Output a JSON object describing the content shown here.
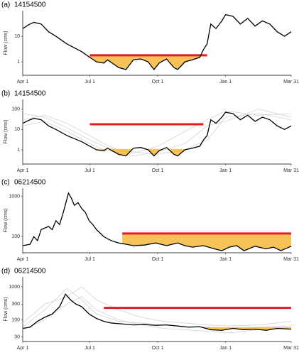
{
  "chart_data": [
    {
      "type": "line",
      "panel_label": "(a)",
      "title": "14154500",
      "y_label": "Flow (cms)",
      "log_y": true,
      "xlim": [
        0,
        364
      ],
      "xticks": [
        {
          "value": 0,
          "label": "Apr 1"
        },
        {
          "value": 91,
          "label": "Jul 1"
        },
        {
          "value": 183,
          "label": "Oct 1"
        },
        {
          "value": 275,
          "label": "Jan 1"
        },
        {
          "value": 364,
          "label": "Mar 31"
        }
      ],
      "ylim": [
        0.3,
        100
      ],
      "yticks": [
        1,
        10
      ],
      "threshold": {
        "value": 1.8,
        "start": 91,
        "end": 250,
        "color": "#e41a1c"
      },
      "shading": {
        "level": 1.8,
        "color": "#f6b83c"
      },
      "series": [
        {
          "color": "#000000",
          "x": [
            0,
            8,
            15,
            25,
            35,
            45,
            60,
            80,
            91,
            100,
            110,
            115,
            130,
            140,
            150,
            160,
            170,
            178,
            185,
            195,
            205,
            210,
            220,
            230,
            240,
            245,
            250,
            255,
            262,
            270,
            275,
            285,
            295,
            305,
            315,
            325,
            335,
            345,
            355,
            364
          ],
          "values": [
            20,
            28,
            35,
            30,
            15,
            10,
            5,
            2.5,
            1.5,
            1,
            0.9,
            1.2,
            0.6,
            0.5,
            1.2,
            1.3,
            1,
            0.5,
            0.9,
            1.3,
            0.6,
            0.5,
            1,
            1.2,
            1.5,
            3,
            5,
            30,
            20,
            40,
            70,
            60,
            30,
            50,
            25,
            40,
            30,
            15,
            10,
            15
          ]
        }
      ]
    },
    {
      "type": "line",
      "panel_label": "(b)",
      "title": "14154500",
      "y_label": "Flow (cms)",
      "log_y": true,
      "xlim": [
        0,
        364
      ],
      "xticks": [
        {
          "value": 0,
          "label": "Apr 1"
        },
        {
          "value": 91,
          "label": "Jul 1"
        },
        {
          "value": 183,
          "label": "Oct 1"
        },
        {
          "value": 275,
          "label": "Jan 1"
        },
        {
          "value": 364,
          "label": "Mar 31"
        }
      ],
      "ylim": [
        0.2,
        300
      ],
      "yticks": [
        1,
        10,
        100
      ],
      "threshold": {
        "value": 18,
        "start": 91,
        "end": 245,
        "color": "#e41a1c"
      },
      "shading": {
        "level": 1.1,
        "color": "#f6b83c"
      },
      "series": [
        {
          "color": "#c8c8c8",
          "x": [
            0,
            30,
            60,
            91,
            110,
            130,
            150,
            183,
            220,
            250,
            275,
            320,
            364
          ],
          "values": [
            30,
            50,
            20,
            5,
            2,
            1,
            0.8,
            0.6,
            1,
            3,
            40,
            60,
            30
          ]
        },
        {
          "color": "#c8c8c8",
          "x": [
            0,
            30,
            60,
            91,
            110,
            130,
            150,
            183,
            220,
            250,
            275,
            320,
            364
          ],
          "values": [
            60,
            40,
            12,
            3,
            1.5,
            0.9,
            0.7,
            1.5,
            8,
            30,
            80,
            50,
            60
          ]
        },
        {
          "color": "#c8c8c8",
          "x": [
            0,
            30,
            60,
            91,
            110,
            130,
            150,
            183,
            220,
            250,
            275,
            320,
            364
          ],
          "values": [
            15,
            25,
            8,
            2,
            1,
            0.7,
            0.5,
            0.8,
            2,
            15,
            25,
            100,
            40
          ]
        },
        {
          "color": "#000000",
          "x": [
            0,
            8,
            15,
            25,
            35,
            45,
            60,
            80,
            91,
            100,
            110,
            115,
            130,
            140,
            150,
            160,
            170,
            178,
            185,
            195,
            205,
            210,
            220,
            230,
            240,
            245,
            250,
            255,
            262,
            270,
            275,
            285,
            295,
            305,
            315,
            325,
            335,
            345,
            355,
            364
          ],
          "values": [
            20,
            28,
            35,
            30,
            15,
            10,
            5,
            2.5,
            1.5,
            1,
            0.9,
            1.2,
            0.6,
            0.5,
            1.2,
            1.3,
            1,
            0.5,
            0.9,
            1.3,
            0.6,
            0.5,
            1,
            1.2,
            1.5,
            3,
            5,
            30,
            20,
            40,
            70,
            60,
            30,
            50,
            25,
            40,
            30,
            15,
            10,
            15
          ]
        }
      ]
    },
    {
      "type": "line",
      "panel_label": "(c)",
      "title": "06214500",
      "y_label": "Flow (cms)",
      "log_y": true,
      "xlim": [
        0,
        364
      ],
      "xticks": [
        {
          "value": 0,
          "label": "Apr 1"
        },
        {
          "value": 91,
          "label": "Jul 1"
        },
        {
          "value": 183,
          "label": "Oct 1"
        },
        {
          "value": 275,
          "label": "Jan 1"
        },
        {
          "value": 364,
          "label": "Mar 31"
        }
      ],
      "ylim": [
        40,
        1600
      ],
      "yticks": [
        100,
        1000
      ],
      "threshold": {
        "value": 120,
        "start": 135,
        "end": 364,
        "color": "#e41a1c"
      },
      "shading": {
        "level": 120,
        "color": "#f6b83c"
      },
      "series": [
        {
          "color": "#000000",
          "x": [
            0,
            10,
            15,
            20,
            25,
            35,
            40,
            45,
            50,
            55,
            62,
            66,
            70,
            75,
            80,
            85,
            90,
            95,
            100,
            110,
            120,
            130,
            140,
            150,
            165,
            180,
            195,
            210,
            220,
            230,
            245,
            260,
            270,
            280,
            290,
            300,
            315,
            330,
            340,
            350,
            364
          ],
          "values": [
            60,
            65,
            100,
            80,
            150,
            180,
            150,
            250,
            200,
            400,
            1200,
            900,
            600,
            700,
            500,
            400,
            250,
            200,
            150,
            100,
            80,
            70,
            65,
            60,
            62,
            70,
            60,
            70,
            60,
            55,
            60,
            50,
            45,
            55,
            60,
            45,
            58,
            50,
            55,
            45,
            58
          ]
        }
      ]
    },
    {
      "type": "line",
      "panel_label": "(d)",
      "title": "06214500",
      "y_label": "Flow (cms)",
      "log_y": true,
      "xlim": [
        0,
        364
      ],
      "xticks": [
        {
          "value": 0,
          "label": "Apr 1"
        },
        {
          "value": 91,
          "label": "Jul 1"
        },
        {
          "value": 183,
          "label": "Oct 1"
        },
        {
          "value": 275,
          "label": "Jan 1"
        },
        {
          "value": 364,
          "label": "Mar 31"
        }
      ],
      "ylim": [
        22,
        2000
      ],
      "yticks": [
        30,
        100,
        300,
        1000
      ],
      "threshold": {
        "value": 230,
        "start": 110,
        "end": 364,
        "color": "#e41a1c"
      },
      "shading": {
        "level": 60,
        "color": "#f6b83c"
      },
      "series": [
        {
          "color": "#c8c8c8",
          "x": [
            0,
            30,
            60,
            80,
            100,
            130,
            160,
            190,
            220,
            250,
            280,
            320,
            364
          ],
          "values": [
            60,
            200,
            900,
            400,
            150,
            90,
            80,
            70,
            60,
            60,
            55,
            60,
            65
          ]
        },
        {
          "color": "#c8c8c8",
          "x": [
            0,
            30,
            60,
            80,
            100,
            130,
            160,
            190,
            220,
            250,
            280,
            320,
            364
          ],
          "values": [
            80,
            300,
            500,
            1000,
            400,
            200,
            120,
            90,
            80,
            70,
            65,
            70,
            90
          ]
        },
        {
          "color": "#c8c8c8",
          "x": [
            0,
            30,
            60,
            80,
            100,
            130,
            160,
            190,
            220,
            250,
            280,
            320,
            364
          ],
          "values": [
            50,
            100,
            300,
            500,
            200,
            100,
            70,
            55,
            50,
            45,
            40,
            50,
            55
          ]
        },
        {
          "color": "#000000",
          "x": [
            0,
            10,
            20,
            30,
            40,
            50,
            58,
            65,
            72,
            80,
            90,
            100,
            110,
            120,
            135,
            150,
            165,
            180,
            195,
            210,
            225,
            240,
            255,
            270,
            285,
            300,
            315,
            330,
            345,
            364
          ],
          "values": [
            55,
            60,
            90,
            120,
            150,
            250,
            600,
            400,
            300,
            250,
            150,
            110,
            90,
            80,
            75,
            70,
            72,
            68,
            70,
            65,
            60,
            62,
            50,
            48,
            55,
            50,
            52,
            48,
            55,
            52
          ]
        }
      ]
    }
  ]
}
